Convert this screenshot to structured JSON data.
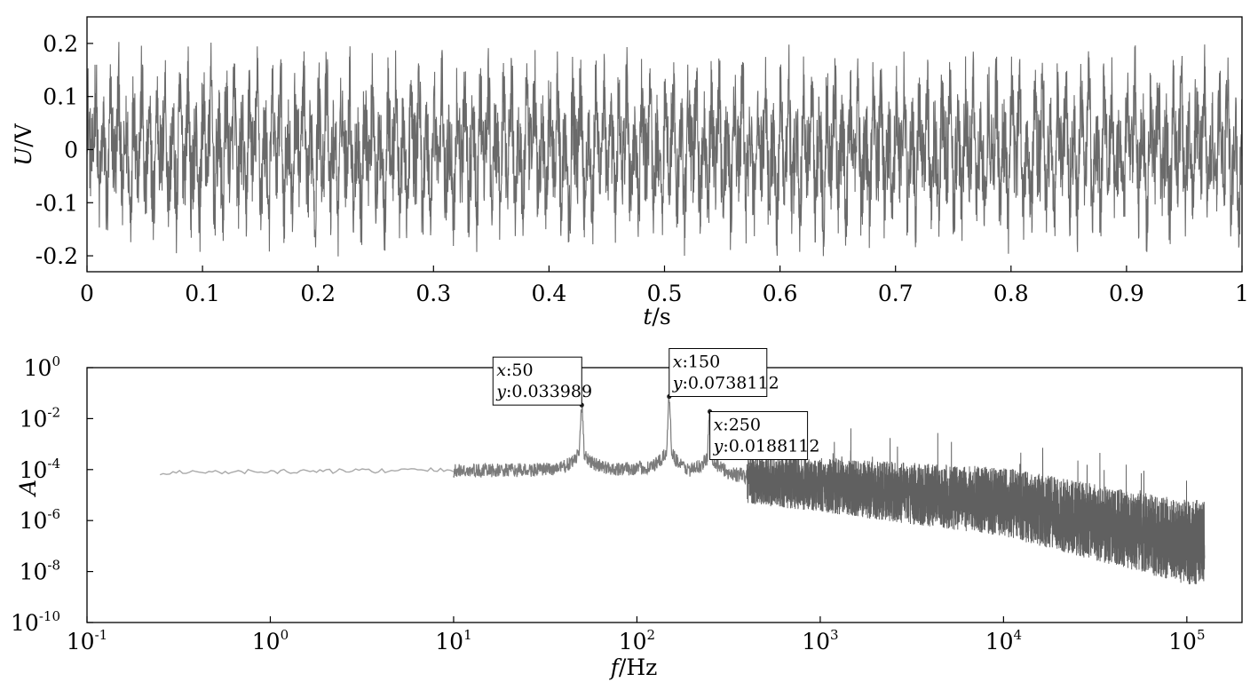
{
  "chart_data": [
    {
      "type": "line",
      "title": "",
      "xlabel": {
        "symbol": "t",
        "unit": "/s"
      },
      "ylabel": {
        "symbol": "U",
        "unit": "/V"
      },
      "xlim": [
        0,
        1
      ],
      "ylim": [
        -0.23,
        0.25
      ],
      "x_ticks": [
        "0",
        "0.1",
        "0.2",
        "0.3",
        "0.4",
        "0.5",
        "0.6",
        "0.7",
        "0.8",
        "0.9",
        "1"
      ],
      "y_ticks": [
        "-0.2",
        "-0.1",
        "0",
        "0.1",
        "0.2"
      ],
      "grid": false,
      "series": [
        {
          "components": [
            {
              "frequency_hz": 50,
              "amplitude_v": 0.034
            },
            {
              "frequency_hz": 150,
              "amplitude_v": 0.074
            },
            {
              "frequency_hz": 250,
              "amplitude_v": 0.019
            }
          ],
          "noise_amplitude_v": 0.1,
          "peak_range_v": [
            -0.22,
            0.24
          ]
        }
      ]
    },
    {
      "type": "line",
      "title": "",
      "xlabel": {
        "symbol": "f",
        "unit": "/Hz"
      },
      "ylabel": {
        "symbol": "A",
        "unit": ""
      },
      "xscale": "log",
      "yscale": "log",
      "xlim": [
        0.1,
        200000
      ],
      "ylim": [
        1e-10,
        1
      ],
      "x_ticks": [
        {
          "base": "10",
          "exp": "-1"
        },
        {
          "base": "10",
          "exp": "0"
        },
        {
          "base": "10",
          "exp": "1"
        },
        {
          "base": "10",
          "exp": "2"
        },
        {
          "base": "10",
          "exp": "3"
        },
        {
          "base": "10",
          "exp": "4"
        },
        {
          "base": "10",
          "exp": "5"
        }
      ],
      "y_ticks": [
        {
          "base": "10",
          "exp": "0"
        },
        {
          "base": "10",
          "exp": "-2"
        },
        {
          "base": "10",
          "exp": "-4"
        },
        {
          "base": "10",
          "exp": "-6"
        },
        {
          "base": "10",
          "exp": "-8"
        },
        {
          "base": "10",
          "exp": "-10"
        }
      ],
      "grid": false,
      "series": [
        {
          "x_range_hz": [
            0.25,
            125000
          ],
          "floor_trend": [
            {
              "f": 0.25,
              "a": 8e-05
            },
            {
              "f": 10,
              "a": 0.0001
            },
            {
              "f": 100,
              "a": 0.00012
            },
            {
              "f": 1000,
              "a": 4e-05
            },
            {
              "f": 10000,
              "a": 1e-05
            },
            {
              "f": 100000,
              "a": 3e-07
            }
          ],
          "peaks": [
            {
              "f": 50,
              "a": 0.033989
            },
            {
              "f": 150,
              "a": 0.0738112
            },
            {
              "f": 250,
              "a": 0.0188112
            }
          ]
        }
      ],
      "annotations": [
        {
          "x_label": "x",
          "x_value": "50",
          "y_label": "y",
          "y_value": "0.033989",
          "f": 50,
          "a": 0.033989
        },
        {
          "x_label": "x",
          "x_value": "150",
          "y_label": "y",
          "y_value": "0.0738112",
          "f": 150,
          "a": 0.0738112
        },
        {
          "x_label": "x",
          "x_value": "250",
          "y_label": "y",
          "y_value": "0.0188112",
          "f": 250,
          "a": 0.0188112
        }
      ]
    }
  ]
}
